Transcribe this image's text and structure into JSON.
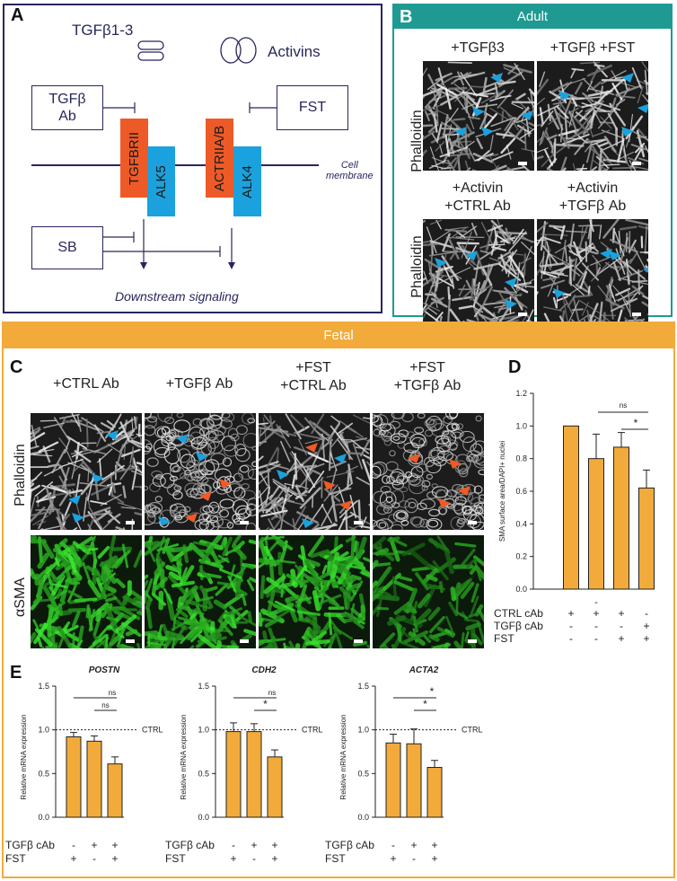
{
  "panels": {
    "a": "A",
    "b": "B",
    "c": "C",
    "d": "D",
    "e": "E"
  },
  "panelA": {
    "tgfb_label": "TGFβ1-3",
    "activins_label": "Activins",
    "tgfb_ab_line1": "TGFβ",
    "tgfb_ab_line2": "Ab",
    "fst": "FST",
    "sb": "SB",
    "tgfbrii": "TGFBRII",
    "alk5": "ALK5",
    "actriiab": "ACTRIIA/B",
    "alk4": "ALK4",
    "membrane_line1": "Cell",
    "membrane_line2": "membrane",
    "downstream": "Downstream signaling",
    "colors": {
      "navy": "#27275e",
      "orange": "#ee5a27",
      "blue": "#1ba2de"
    }
  },
  "panelB": {
    "header": "Adult",
    "header_color": "#1e9a92",
    "row_label": "Phalloidin",
    "col1": "+TGFβ3",
    "col2": "+TGFβ +FST",
    "col3_line1": "+Activin",
    "col3_line2": "+CTRL Ab",
    "col4_line1": "+Activin",
    "col4_line2": "+TGFβ Ab"
  },
  "panelC": {
    "header": "Fetal",
    "header_color": "#f2ab3a",
    "col1": "+CTRL Ab",
    "col2": "+TGFβ Ab",
    "col3_line1": "+FST",
    "col3_line2": "+CTRL Ab",
    "col4_line1": "+FST",
    "col4_line2": "+TGFβ Ab",
    "row1": "Phalloidin",
    "row2": "αSMA"
  },
  "chart_data": [
    {
      "type": "bar",
      "panel": "D",
      "ylabel": "SMA surface area/DAPI+ nuclei",
      "ylim": [
        0,
        1.2
      ],
      "yticks": [
        "0.0",
        "0.2",
        "0.4",
        "0.6",
        "0.8",
        "1.0",
        "1.2"
      ],
      "bar_color": "#f2ab3a",
      "values": [
        1.0,
        0.8,
        0.87,
        0.62
      ],
      "errors": [
        0.0,
        0.15,
        0.09,
        0.11
      ],
      "significance": [
        {
          "from": 2,
          "to": 3,
          "label": "ns"
        },
        {
          "from": 2,
          "to": 3,
          "label": "*"
        }
      ],
      "sig_labels": {
        "top": "ns",
        "bottom": "*"
      },
      "conditions": [
        {
          "name": "CTRL cAb",
          "marks": [
            "+",
            "+",
            "+",
            "-"
          ]
        },
        {
          "name": "TGFβ cAb",
          "marks": [
            "-",
            "-",
            "-",
            "+"
          ]
        },
        {
          "name": "FST",
          "marks": [
            "-",
            "-",
            "+",
            "+"
          ]
        }
      ],
      "extra_mark": "-"
    },
    {
      "type": "bar",
      "panel": "E",
      "title": "POSTN",
      "ylabel": "Relative mRNA expression",
      "ylim": [
        0,
        1.5
      ],
      "yticks": [
        "0.0",
        "0.5",
        "1.0",
        "1.5"
      ],
      "values": [
        0.92,
        0.87,
        0.61
      ],
      "errors": [
        0.05,
        0.06,
        0.08
      ],
      "ctrl_line": 1.0,
      "ctrl_label": "CTRL",
      "sig_top": "ns",
      "sig_bottom": "ns",
      "conditions": [
        {
          "name": "TGFβ cAb",
          "marks": [
            "-",
            "+",
            "+"
          ]
        },
        {
          "name": "FST",
          "marks": [
            "+",
            "-",
            "+"
          ]
        }
      ]
    },
    {
      "type": "bar",
      "panel": "E",
      "title": "CDH2",
      "ylabel": "Relative mRNA expression",
      "ylim": [
        0,
        1.5
      ],
      "yticks": [
        "0.0",
        "0.5",
        "1.0",
        "1.5"
      ],
      "values": [
        0.98,
        0.98,
        0.69
      ],
      "errors": [
        0.1,
        0.09,
        0.08
      ],
      "ctrl_line": 1.0,
      "ctrl_label": "CTRL",
      "sig_top": "ns",
      "sig_bottom": "*",
      "conditions": [
        {
          "name": "TGFβ cAb",
          "marks": [
            "-",
            "+",
            "+"
          ]
        },
        {
          "name": "FST",
          "marks": [
            "+",
            "-",
            "+"
          ]
        }
      ]
    },
    {
      "type": "bar",
      "panel": "E",
      "title": "ACTA2",
      "ylabel": "Relative mRNA expression",
      "ylim": [
        0,
        1.5
      ],
      "yticks": [
        "0.0",
        "0.5",
        "1.0",
        "1.5"
      ],
      "values": [
        0.85,
        0.84,
        0.57
      ],
      "errors": [
        0.1,
        0.17,
        0.08
      ],
      "ctrl_line": 1.0,
      "ctrl_label": "CTRL",
      "sig_top": "*",
      "sig_bottom": "*",
      "conditions": [
        {
          "name": "TGFβ cAb",
          "marks": [
            "-",
            "+",
            "+"
          ]
        },
        {
          "name": "FST",
          "marks": [
            "+",
            "-",
            "+"
          ]
        }
      ]
    }
  ]
}
